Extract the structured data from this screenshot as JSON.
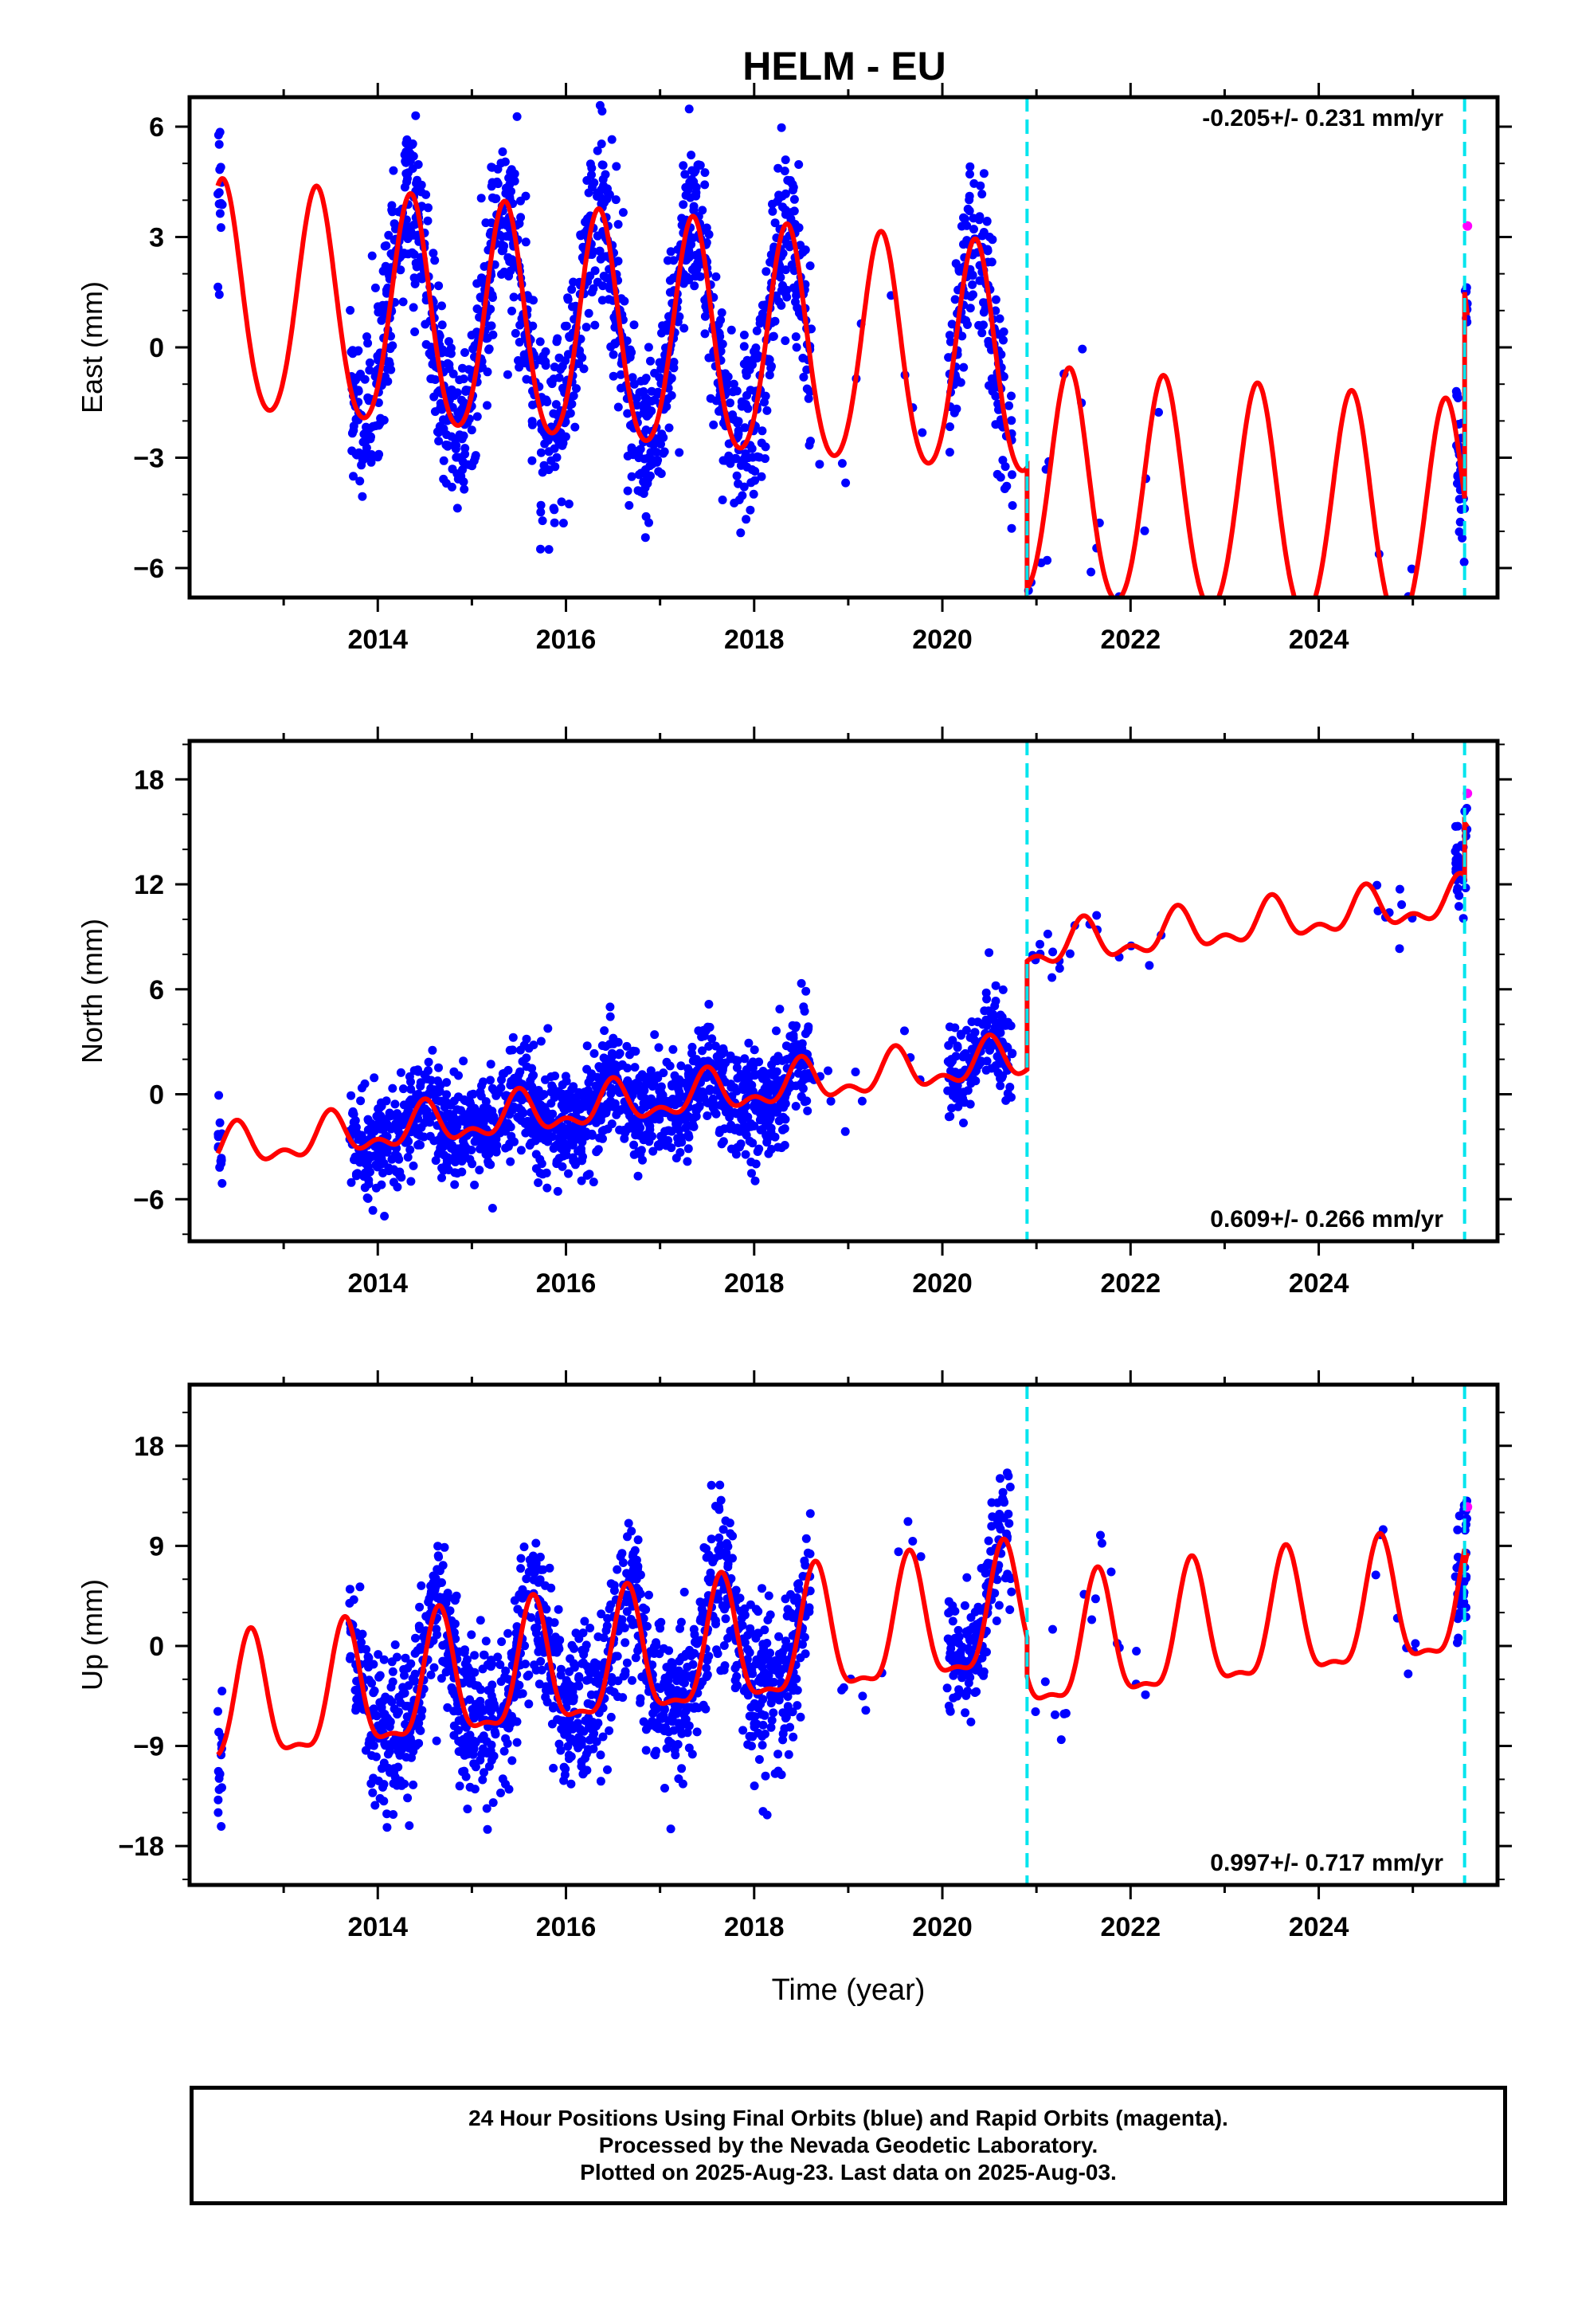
{
  "title": "HELM - EU",
  "xlabel": "Time (year)",
  "footer": {
    "line1": "24 Hour Positions Using Final Orbits (blue) and Rapid Orbits (magenta).",
    "line2": "Processed by the Nevada Geodetic Laboratory.",
    "line3": "Plotted on 2025-Aug-23. Last data on 2025-Aug-03."
  },
  "colors": {
    "final": "#0000ff",
    "rapid": "#ff00ff",
    "model": "#ff0000",
    "steps": "#00e5ee"
  },
  "chart_data": [
    {
      "type": "scatter",
      "component": "east",
      "ylabel": "East (mm)",
      "rate_text": "-0.205+/- 0.231 mm/yr",
      "xlim": [
        2012.0,
        2025.9
      ],
      "ylim": [
        -6.8,
        6.8
      ],
      "yticks": [
        -6,
        -3,
        0,
        3,
        6
      ],
      "ytick_labels": [
        "−6",
        "−3",
        "0",
        "3",
        "6"
      ],
      "xticks": [
        2014,
        2016,
        2018,
        2020,
        2022,
        2024
      ],
      "xtick_labels": [
        "2014",
        "2016",
        "2018",
        "2020",
        "2022",
        "2024"
      ],
      "step_epochs": [
        2020.9,
        2025.55
      ],
      "model": {
        "rate": -0.205,
        "segments": [
          {
            "start": 2012.3,
            "end": 2020.9,
            "offset": 1.2
          },
          {
            "start": 2020.9,
            "end": 2025.55,
            "offset": -2.1
          },
          {
            "start": 2025.55,
            "end": 2025.58,
            "offset": 3.5
          }
        ],
        "annual_amplitude": 3.1,
        "annual_phase_peak": 0.35,
        "semiannual_amplitude": 0.3
      },
      "series": [
        {
          "name": "Final Orbits (blue)",
          "color": "#0000ff",
          "groups": [
            {
              "start": 2012.3,
              "end": 2012.35,
              "n": 15,
              "scatter": 1.0
            },
            {
              "start": 2013.7,
              "end": 2018.6,
              "n": 1400,
              "scatter": 1.2
            },
            {
              "start": 2018.6,
              "end": 2019.9,
              "n": 10,
              "scatter": 0.8
            },
            {
              "start": 2020.05,
              "end": 2020.75,
              "n": 170,
              "scatter": 1.1
            },
            {
              "start": 2020.9,
              "end": 2021.9,
              "n": 15,
              "scatter": 0.8
            },
            {
              "start": 2022.0,
              "end": 2022.4,
              "n": 3,
              "scatter": 0.8
            },
            {
              "start": 2024.6,
              "end": 2025.1,
              "n": 8,
              "scatter": 0.6
            },
            {
              "start": 2025.45,
              "end": 2025.58,
              "n": 35,
              "scatter": 1.0
            }
          ]
        },
        {
          "name": "Rapid Orbits (magenta)",
          "color": "#ff00ff",
          "points": [
            {
              "x": 2025.58,
              "y": 3.3
            }
          ]
        }
      ]
    },
    {
      "type": "scatter",
      "component": "north",
      "ylabel": "North (mm)",
      "rate_text": "0.609+/- 0.266 mm/yr",
      "xlim": [
        2012.0,
        2025.9
      ],
      "ylim": [
        -8.4,
        20.2
      ],
      "yticks": [
        -6,
        0,
        6,
        12,
        18
      ],
      "ytick_labels": [
        "−6",
        "0",
        "6",
        "12",
        "18"
      ],
      "xticks": [
        2014,
        2016,
        2018,
        2020,
        2022,
        2024
      ],
      "xtick_labels": [
        "2014",
        "2016",
        "2018",
        "2020",
        "2022",
        "2024"
      ],
      "step_epochs": [
        2020.9,
        2025.55
      ],
      "model": {
        "rate": 0.609,
        "segments": [
          {
            "start": 2012.3,
            "end": 2020.9,
            "offset": -3.2
          },
          {
            "start": 2020.9,
            "end": 2025.55,
            "offset": 3.0
          },
          {
            "start": 2025.55,
            "end": 2025.58,
            "offset": 6.0
          }
        ],
        "annual_amplitude": 1.0,
        "annual_phase_peak": 0.5,
        "semiannual_amplitude": 0.6
      },
      "series": [
        {
          "name": "Final Orbits (blue)",
          "color": "#0000ff",
          "groups": [
            {
              "start": 2012.3,
              "end": 2012.35,
              "n": 15,
              "scatter": 1.0
            },
            {
              "start": 2013.7,
              "end": 2018.6,
              "n": 1400,
              "scatter": 1.5
            },
            {
              "start": 2018.6,
              "end": 2019.9,
              "n": 10,
              "scatter": 0.8
            },
            {
              "start": 2020.05,
              "end": 2020.75,
              "n": 170,
              "scatter": 1.3
            },
            {
              "start": 2020.9,
              "end": 2021.9,
              "n": 15,
              "scatter": 0.8
            },
            {
              "start": 2022.0,
              "end": 2022.4,
              "n": 3,
              "scatter": 0.8
            },
            {
              "start": 2024.6,
              "end": 2025.1,
              "n": 8,
              "scatter": 0.7
            },
            {
              "start": 2025.45,
              "end": 2025.58,
              "n": 35,
              "scatter": 1.2
            }
          ]
        },
        {
          "name": "Rapid Orbits (magenta)",
          "color": "#ff00ff",
          "points": [
            {
              "x": 2025.58,
              "y": 17.2
            }
          ]
        }
      ]
    },
    {
      "type": "scatter",
      "component": "up",
      "ylabel": "Up (mm)",
      "rate_text": "0.997+/- 0.717 mm/yr",
      "xlim": [
        2012.0,
        2025.9
      ],
      "ylim": [
        -21.5,
        23.5
      ],
      "yticks": [
        -18,
        -9,
        0,
        9,
        18
      ],
      "ytick_labels": [
        "−18",
        "−9",
        "0",
        "9",
        "18"
      ],
      "xticks": [
        2014,
        2016,
        2018,
        2020,
        2022,
        2024
      ],
      "xtick_labels": [
        "2014",
        "2016",
        "2018",
        "2020",
        "2022",
        "2024"
      ],
      "step_epochs": [
        2020.9,
        2025.55
      ],
      "model": {
        "rate": 0.997,
        "segments": [
          {
            "start": 2012.3,
            "end": 2020.9,
            "offset": -6.0
          },
          {
            "start": 2020.9,
            "end": 2025.55,
            "offset": -9.5
          },
          {
            "start": 2025.55,
            "end": 2025.58,
            "offset": -11.0
          }
        ],
        "annual_amplitude": 5.5,
        "annual_phase_peak": 0.65,
        "semiannual_amplitude": 1.8
      },
      "series": [
        {
          "name": "Final Orbits (blue)",
          "color": "#0000ff",
          "groups": [
            {
              "start": 2012.3,
              "end": 2012.35,
              "n": 15,
              "scatter": 3.0
            },
            {
              "start": 2013.7,
              "end": 2018.6,
              "n": 1400,
              "scatter": 3.5
            },
            {
              "start": 2018.6,
              "end": 2019.9,
              "n": 10,
              "scatter": 2.0
            },
            {
              "start": 2020.05,
              "end": 2020.75,
              "n": 170,
              "scatter": 3.0
            },
            {
              "start": 2020.9,
              "end": 2021.9,
              "n": 15,
              "scatter": 2.5
            },
            {
              "start": 2022.0,
              "end": 2022.4,
              "n": 3,
              "scatter": 2.0
            },
            {
              "start": 2024.6,
              "end": 2025.1,
              "n": 8,
              "scatter": 2.5
            },
            {
              "start": 2025.45,
              "end": 2025.58,
              "n": 35,
              "scatter": 3.0
            }
          ]
        },
        {
          "name": "Rapid Orbits (magenta)",
          "color": "#ff00ff",
          "points": [
            {
              "x": 2025.58,
              "y": 12.5
            }
          ]
        }
      ]
    }
  ]
}
